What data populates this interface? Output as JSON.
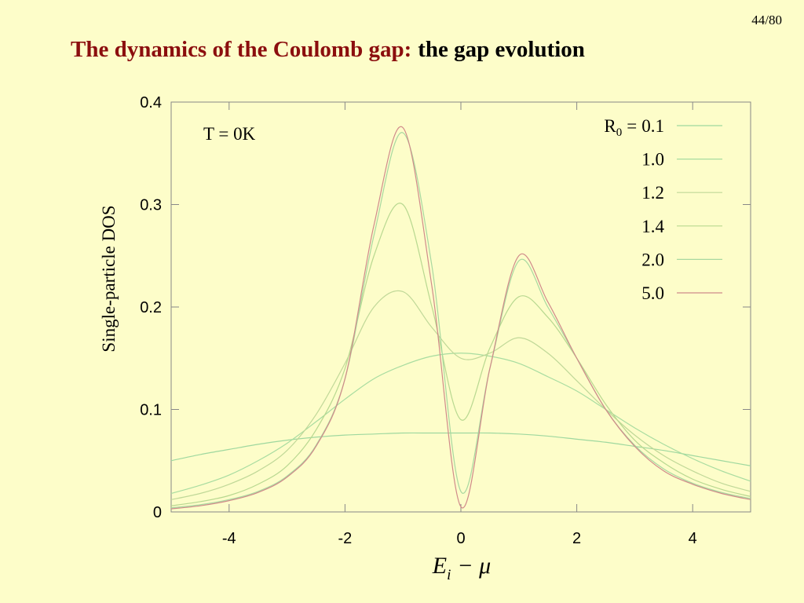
{
  "page_number": "44/80",
  "title": {
    "part1": "The dynamics of the Coulomb gap:",
    "part2": "the gap evolution"
  },
  "chart_data": {
    "type": "line",
    "annotation": "T = 0K",
    "ylabel": "Single-particle DOS",
    "xlabel": {
      "symbol": "E",
      "subscript": "i",
      "rest": "− μ"
    },
    "legend_prefix": {
      "symbol": "R",
      "subscript": "0",
      "equals": "="
    },
    "legend": "upper right",
    "grid": false,
    "xlim": [
      -5,
      5
    ],
    "xticks": [
      -4,
      -2,
      0,
      2,
      4
    ],
    "ylim": [
      0,
      0.4
    ],
    "yticks": [
      0,
      0.1,
      0.2,
      0.3,
      0.4
    ],
    "x": [
      -5,
      -4.5,
      -4,
      -3.5,
      -3,
      -2.5,
      -2,
      -1.5,
      -1,
      -0.5,
      0,
      0.5,
      1,
      1.5,
      2,
      2.5,
      3,
      3.5,
      4,
      4.5,
      5
    ],
    "series": [
      {
        "name": "0.1",
        "color": "#9fd89f",
        "values": [
          0.05,
          0.056,
          0.061,
          0.066,
          0.07,
          0.073,
          0.075,
          0.076,
          0.077,
          0.077,
          0.077,
          0.077,
          0.076,
          0.074,
          0.071,
          0.068,
          0.064,
          0.06,
          0.055,
          0.05,
          0.045
        ]
      },
      {
        "name": "1.0",
        "color": "#a8dca0",
        "values": [
          0.018,
          0.026,
          0.036,
          0.05,
          0.067,
          0.088,
          0.11,
          0.13,
          0.143,
          0.152,
          0.155,
          0.152,
          0.145,
          0.132,
          0.118,
          0.1,
          0.082,
          0.066,
          0.052,
          0.04,
          0.03
        ]
      },
      {
        "name": "1.2",
        "color": "#c0d898",
        "values": [
          0.012,
          0.018,
          0.027,
          0.04,
          0.06,
          0.095,
          0.145,
          0.2,
          0.215,
          0.18,
          0.15,
          0.155,
          0.17,
          0.155,
          0.128,
          0.1,
          0.075,
          0.055,
          0.04,
          0.028,
          0.02
        ]
      },
      {
        "name": "1.4",
        "color": "#b8d890",
        "values": [
          0.006,
          0.01,
          0.016,
          0.027,
          0.045,
          0.08,
          0.14,
          0.25,
          0.3,
          0.2,
          0.09,
          0.16,
          0.21,
          0.19,
          0.15,
          0.105,
          0.07,
          0.048,
          0.032,
          0.022,
          0.015
        ]
      },
      {
        "name": "2.0",
        "color": "#a8d8a0",
        "values": [
          0.004,
          0.007,
          0.012,
          0.02,
          0.035,
          0.065,
          0.13,
          0.27,
          0.37,
          0.24,
          0.02,
          0.14,
          0.245,
          0.2,
          0.15,
          0.1,
          0.065,
          0.042,
          0.028,
          0.019,
          0.013
        ]
      },
      {
        "name": "5.0",
        "color": "#d08a8a",
        "values": [
          0.003,
          0.006,
          0.011,
          0.019,
          0.034,
          0.064,
          0.13,
          0.28,
          0.375,
          0.22,
          0.005,
          0.14,
          0.25,
          0.205,
          0.15,
          0.1,
          0.064,
          0.04,
          0.027,
          0.018,
          0.012
        ]
      }
    ]
  }
}
